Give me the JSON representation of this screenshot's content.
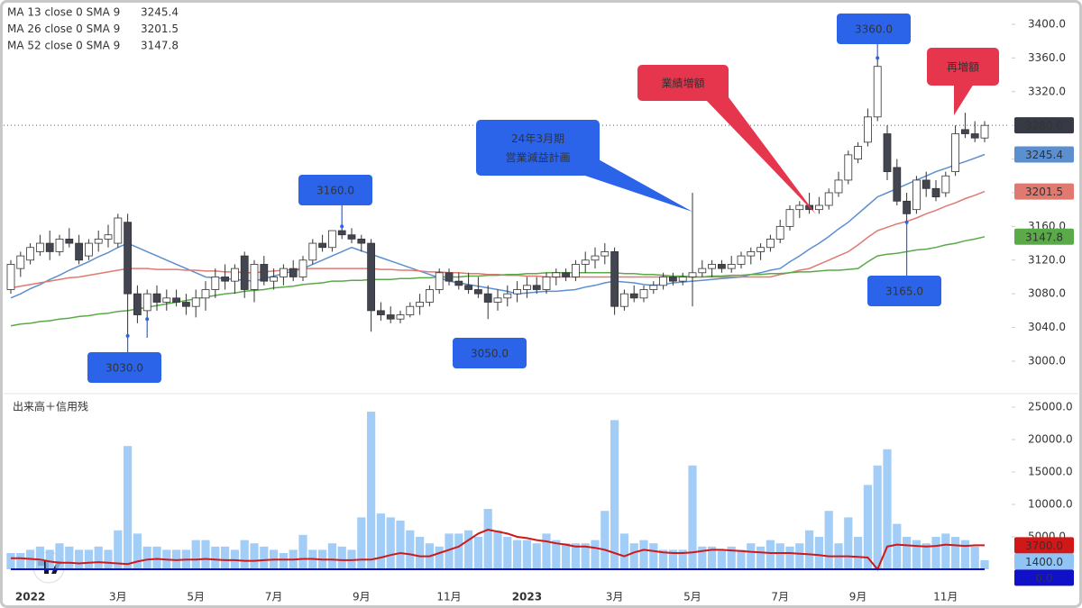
{
  "chart_data": {
    "type": "candlestick",
    "categories": [
      null,
      null,
      "2022",
      null,
      null,
      null,
      null,
      null,
      null,
      null,
      null,
      "3月",
      null,
      null,
      null,
      null,
      null,
      null,
      null,
      "5月",
      null,
      null,
      null,
      null,
      null,
      null,
      null,
      "7月",
      null,
      null,
      null,
      null,
      null,
      null,
      null,
      null,
      "9月",
      null,
      null,
      null,
      null,
      null,
      null,
      null,
      null,
      "11月",
      null,
      null,
      null,
      null,
      null,
      null,
      null,
      "2023",
      null,
      null,
      null,
      null,
      null,
      null,
      null,
      null,
      "3月",
      null,
      null,
      null,
      null,
      null,
      null,
      null,
      "5月",
      null,
      null,
      null,
      null,
      null,
      null,
      null,
      null,
      "7月",
      null,
      null,
      null,
      null,
      null,
      null,
      null,
      "9月",
      null,
      null,
      null,
      null,
      null,
      null,
      null,
      null,
      "11月",
      null,
      null,
      null,
      null
    ],
    "open": [
      3085,
      3110,
      3120,
      3130,
      3140,
      3130,
      3145,
      3140,
      3125,
      3140,
      3145,
      3140,
      3165,
      3080,
      3060,
      3080,
      3070,
      3075,
      3070,
      3065,
      3075,
      3085,
      3100,
      3095,
      3125,
      3085,
      3115,
      3095,
      3100,
      3110,
      3100,
      3120,
      3140,
      3135,
      3155,
      3150,
      3145,
      3140,
      3060,
      3055,
      3050,
      3055,
      3065,
      3070,
      3085,
      3105,
      3095,
      3090,
      3085,
      3080,
      3070,
      3075,
      3080,
      3085,
      3090,
      3085,
      3100,
      3105,
      3100,
      3115,
      3120,
      3125,
      3130,
      3065,
      3080,
      3075,
      3085,
      3090,
      3100,
      3095,
      3100,
      3105,
      3110,
      3115,
      3110,
      3115,
      3125,
      3130,
      3135,
      3145,
      3160,
      3180,
      3185,
      3180,
      3185,
      3200,
      3215,
      3240,
      3260,
      3290,
      3270,
      3230,
      3190,
      3180,
      3215,
      3205,
      3200,
      3225,
      3275,
      3270,
      3265
    ],
    "high": [
      3120,
      3130,
      3140,
      3150,
      3155,
      3150,
      3158,
      3150,
      3145,
      3155,
      3162,
      3175,
      3175,
      3090,
      3085,
      3090,
      3085,
      3085,
      3080,
      3085,
      3095,
      3110,
      3115,
      3115,
      3130,
      3120,
      3125,
      3110,
      3115,
      3120,
      3125,
      3145,
      3150,
      3155,
      3160,
      3158,
      3150,
      3145,
      3070,
      3065,
      3060,
      3070,
      3080,
      3090,
      3110,
      3110,
      3105,
      3105,
      3100,
      3090,
      3085,
      3090,
      3095,
      3100,
      3100,
      3105,
      3110,
      3110,
      3120,
      3130,
      3135,
      3140,
      3135,
      3085,
      3090,
      3090,
      3095,
      3105,
      3105,
      3105,
      3200,
      3120,
      3120,
      3120,
      3125,
      3130,
      3135,
      3140,
      3150,
      3168,
      3185,
      3190,
      3200,
      3195,
      3205,
      3225,
      3250,
      3260,
      3300,
      3360,
      3280,
      3240,
      3200,
      3220,
      3225,
      3215,
      3225,
      3280,
      3295,
      3285,
      3285
    ],
    "low": [
      3080,
      3100,
      3115,
      3125,
      3120,
      3125,
      3135,
      3115,
      3120,
      3130,
      3135,
      3135,
      3030,
      3045,
      3050,
      3060,
      3060,
      3065,
      3055,
      3052,
      3060,
      3075,
      3085,
      3080,
      3075,
      3070,
      3090,
      3085,
      3090,
      3095,
      3095,
      3115,
      3130,
      3130,
      3145,
      3140,
      3130,
      3035,
      3048,
      3045,
      3045,
      3052,
      3055,
      3065,
      3080,
      3090,
      3085,
      3080,
      3075,
      3050,
      3060,
      3065,
      3070,
      3075,
      3080,
      3080,
      3090,
      3095,
      3095,
      3105,
      3110,
      3115,
      3055,
      3060,
      3070,
      3070,
      3080,
      3085,
      3090,
      3090,
      3065,
      3100,
      3100,
      3105,
      3105,
      3110,
      3115,
      3120,
      3130,
      3140,
      3155,
      3170,
      3175,
      3175,
      3180,
      3195,
      3210,
      3235,
      3255,
      3285,
      3215,
      3185,
      3165,
      3175,
      3195,
      3190,
      3195,
      3220,
      3265,
      3260,
      3260
    ],
    "close": [
      3115,
      3125,
      3135,
      3140,
      3130,
      3145,
      3140,
      3120,
      3140,
      3145,
      3150,
      3170,
      3080,
      3055,
      3080,
      3070,
      3075,
      3070,
      3065,
      3075,
      3085,
      3100,
      3095,
      3110,
      3085,
      3115,
      3095,
      3100,
      3110,
      3100,
      3120,
      3140,
      3135,
      3155,
      3150,
      3145,
      3140,
      3060,
      3055,
      3050,
      3055,
      3065,
      3070,
      3085,
      3105,
      3095,
      3090,
      3085,
      3080,
      3070,
      3075,
      3080,
      3085,
      3090,
      3085,
      3100,
      3105,
      3100,
      3115,
      3120,
      3125,
      3130,
      3065,
      3080,
      3075,
      3085,
      3090,
      3100,
      3095,
      3100,
      3105,
      3110,
      3115,
      3110,
      3115,
      3125,
      3130,
      3135,
      3145,
      3160,
      3180,
      3185,
      3180,
      3185,
      3200,
      3215,
      3245,
      3255,
      3290,
      3350,
      3225,
      3190,
      3175,
      3215,
      3205,
      3195,
      3220,
      3270,
      3270,
      3265,
      3280
    ],
    "last_label": "3280.0",
    "up_color": "#ffffff",
    "down_color": "#434651",
    "wick_color": "#333333",
    "series": [
      {
        "name": "MA 13 close 0 SMA 9",
        "color": "#5b8fd0",
        "values": [
          3075,
          3080,
          3086,
          3091,
          3097,
          3102,
          3108,
          3113,
          3118,
          3124,
          3129,
          3135,
          3140,
          3135,
          3130,
          3125,
          3120,
          3115,
          3110,
          3105,
          3100,
          3099,
          3098,
          3097,
          3096,
          3095,
          3098,
          3101,
          3104,
          3107,
          3110,
          3115,
          3120,
          3125,
          3130,
          3135,
          3131,
          3127,
          3123,
          3119,
          3115,
          3111,
          3107,
          3103,
          3099,
          3095,
          3093,
          3091,
          3089,
          3087,
          3085,
          3083,
          3080,
          3081,
          3082,
          3083,
          3083,
          3084,
          3085,
          3088,
          3090,
          3093,
          3095,
          3094,
          3093,
          3091,
          3090,
          3091,
          3093,
          3094,
          3095,
          3096,
          3097,
          3098,
          3099,
          3100,
          3103,
          3105,
          3108,
          3110,
          3118,
          3125,
          3133,
          3140,
          3148,
          3157,
          3165,
          3175,
          3185,
          3195,
          3200,
          3205,
          3210,
          3215,
          3220,
          3225,
          3229,
          3233,
          3237,
          3241,
          3245.4
        ]
      },
      {
        "name": "MA 26 close 0 SMA 9",
        "color": "#e07a70",
        "values": [
          3087,
          3089,
          3091,
          3093,
          3095,
          3097,
          3099,
          3100,
          3102,
          3104,
          3106,
          3108,
          3110,
          3110,
          3110,
          3109,
          3109,
          3109,
          3108,
          3108,
          3107,
          3107,
          3106,
          3106,
          3105,
          3105,
          3106,
          3107,
          3108,
          3109,
          3110,
          3110,
          3110,
          3110,
          3110,
          3110,
          3110,
          3110,
          3109,
          3109,
          3108,
          3108,
          3107,
          3106,
          3106,
          3105,
          3105,
          3104,
          3104,
          3103,
          3103,
          3102,
          3102,
          3101,
          3101,
          3100,
          3100,
          3100,
          3100,
          3100,
          3100,
          3100,
          3100,
          3100,
          3100,
          3100,
          3100,
          3100,
          3100,
          3100,
          3100,
          3100,
          3100,
          3100,
          3100,
          3100,
          3100,
          3100,
          3100,
          3103,
          3105,
          3108,
          3110,
          3115,
          3120,
          3125,
          3130,
          3138,
          3147,
          3155,
          3159,
          3163,
          3166,
          3170,
          3175,
          3179,
          3184,
          3188,
          3193,
          3197,
          3201.5
        ]
      },
      {
        "name": "MA 52 close 0 SMA 9",
        "color": "#5aaa4a",
        "values": [
          3042,
          3044,
          3045,
          3047,
          3048,
          3050,
          3051,
          3053,
          3054,
          3056,
          3057,
          3059,
          3060,
          3062,
          3064,
          3066,
          3068,
          3070,
          3072,
          3074,
          3076,
          3078,
          3080,
          3081,
          3083,
          3084,
          3085,
          3087,
          3088,
          3089,
          3091,
          3092,
          3093,
          3095,
          3095,
          3096,
          3096,
          3097,
          3097,
          3097,
          3098,
          3098,
          3099,
          3099,
          3100,
          3100,
          3100,
          3101,
          3101,
          3102,
          3102,
          3103,
          3103,
          3104,
          3104,
          3105,
          3105,
          3105,
          3105,
          3105,
          3105,
          3105,
          3105,
          3104,
          3104,
          3103,
          3103,
          3102,
          3101,
          3101,
          3100,
          3100,
          3101,
          3101,
          3102,
          3102,
          3103,
          3103,
          3104,
          3104,
          3105,
          3106,
          3106,
          3107,
          3108,
          3108,
          3109,
          3110,
          3118,
          3125,
          3127,
          3128,
          3130,
          3132,
          3133,
          3135,
          3138,
          3140,
          3143,
          3145,
          3147.8
        ]
      }
    ],
    "ylim": [
      2963.6,
      3423.5
    ],
    "yticks": [
      {
        "value": 3000,
        "label": "3000.0"
      },
      {
        "value": 3040,
        "label": "3040.0"
      },
      {
        "value": 3080,
        "label": "3080.0"
      },
      {
        "value": 3120,
        "label": "3120.0"
      },
      {
        "value": 3160,
        "label": "3160.0"
      },
      {
        "value": 3200,
        "label": "3200.0"
      },
      {
        "value": 3240,
        "label": "3240.0"
      },
      {
        "value": 3280,
        "label": "3280.0"
      },
      {
        "value": 3320,
        "label": "3320.0"
      },
      {
        "value": 3360,
        "label": "3360.0"
      },
      {
        "value": 3400,
        "label": "3400.0"
      }
    ],
    "annotations": [
      {
        "value": 3030,
        "label": "3030.0"
      },
      {
        "value": 3160,
        "label": "3160.0"
      },
      {
        "value": 3050,
        "label": "3050.0"
      },
      {
        "value": 3360,
        "label": "3360.0"
      },
      {
        "value": 3165,
        "label": "3165.0"
      }
    ],
    "callouts": [
      {
        "lines": [
          "24年3月期",
          "営業減益計画"
        ],
        "color": "#2b64e8"
      },
      {
        "lines": [
          "業績増額"
        ],
        "color": "#e5364d"
      },
      {
        "lines": [
          "再増額"
        ],
        "color": "#e5364d"
      }
    ],
    "volume": {
      "type": "bar",
      "title": "出来高＋信用残",
      "color": "#90c4f4",
      "last_label": "1400.0",
      "values": [
        2500,
        2500,
        3000,
        3500,
        3000,
        4000,
        3500,
        3000,
        3000,
        3500,
        3000,
        6000,
        19000,
        5500,
        3500,
        3500,
        3000,
        3000,
        3000,
        4500,
        4500,
        3500,
        3500,
        3000,
        4500,
        4000,
        3500,
        3000,
        2500,
        3000,
        5300,
        3000,
        3000,
        4000,
        3500,
        3000,
        8000,
        24300,
        8600,
        8000,
        7500,
        6000,
        5000,
        4000,
        3500,
        5500,
        5500,
        6000,
        5000,
        9300,
        6000,
        5000,
        4500,
        4500,
        4000,
        5500,
        4500,
        4000,
        4000,
        4000,
        4500,
        9000,
        23000,
        5500,
        4000,
        4500,
        4000,
        3000,
        3000,
        3000,
        16000,
        3500,
        3500,
        3000,
        3500,
        3000,
        4000,
        3500,
        4500,
        4000,
        3500,
        4000,
        6000,
        5000,
        9000,
        4000,
        8000,
        5000,
        13000,
        16000,
        18500,
        7000,
        5000,
        4500,
        4000,
        5000,
        5500,
        5000,
        4500,
        3500,
        1400
      ],
      "series": [
        {
          "color": "#d01818",
          "last_label": "3700.0",
          "values": [
            1700,
            1700,
            1600,
            1500,
            1200,
            1000,
            1000,
            900,
            1000,
            1100,
            1000,
            900,
            800,
            1200,
            1500,
            1600,
            1500,
            1400,
            1500,
            1500,
            1600,
            1500,
            1400,
            1400,
            1300,
            1300,
            1400,
            1500,
            1500,
            1500,
            1600,
            1600,
            1500,
            1500,
            1400,
            1400,
            1500,
            1500,
            1800,
            2200,
            2500,
            2300,
            2000,
            2000,
            2500,
            3000,
            3500,
            4500,
            5500,
            6100,
            5800,
            5500,
            5000,
            4800,
            4500,
            4300,
            4000,
            3800,
            3500,
            3500,
            3300,
            3000,
            2500,
            2000,
            2600,
            3000,
            2800,
            2600,
            2500,
            2500,
            2600,
            2800,
            3000,
            3000,
            2900,
            2800,
            2700,
            2600,
            2500,
            2500,
            2500,
            2400,
            2300,
            2200,
            2000,
            2000,
            2000,
            1900,
            1800,
            0,
            3500,
            3800,
            3700,
            3600,
            3500,
            3600,
            3800,
            3700,
            3600,
            3700,
            3700
          ]
        },
        {
          "color": "#1010c8",
          "last_label": "0.0",
          "values": [
            0,
            0,
            0,
            0,
            0,
            0,
            0,
            0,
            0,
            0,
            0,
            0,
            0,
            0,
            0,
            0,
            0,
            0,
            0,
            0,
            0,
            0,
            0,
            0,
            0,
            0,
            0,
            0,
            0,
            0,
            0,
            0,
            0,
            0,
            0,
            0,
            0,
            0,
            0,
            0,
            0,
            0,
            0,
            0,
            0,
            0,
            0,
            0,
            0,
            0,
            0,
            0,
            0,
            0,
            0,
            0,
            0,
            0,
            0,
            0,
            0,
            0,
            0,
            0,
            0,
            0,
            0,
            0,
            0,
            0,
            0,
            0,
            0,
            0,
            0,
            0,
            0,
            0,
            0,
            0,
            0,
            0,
            0,
            0,
            0,
            0,
            0,
            0,
            0,
            0,
            0,
            0,
            0,
            0,
            0,
            0,
            0,
            0,
            0,
            0,
            0
          ]
        }
      ],
      "ylim": [
        -2500,
        26667
      ],
      "yticks": [
        {
          "value": 5000,
          "label": "5000.0"
        },
        {
          "value": 10000,
          "label": "10000.0"
        },
        {
          "value": 15000,
          "label": "15000.0"
        },
        {
          "value": 20000,
          "label": "20000.0"
        },
        {
          "value": 25000,
          "label": "25000.0"
        }
      ]
    }
  }
}
